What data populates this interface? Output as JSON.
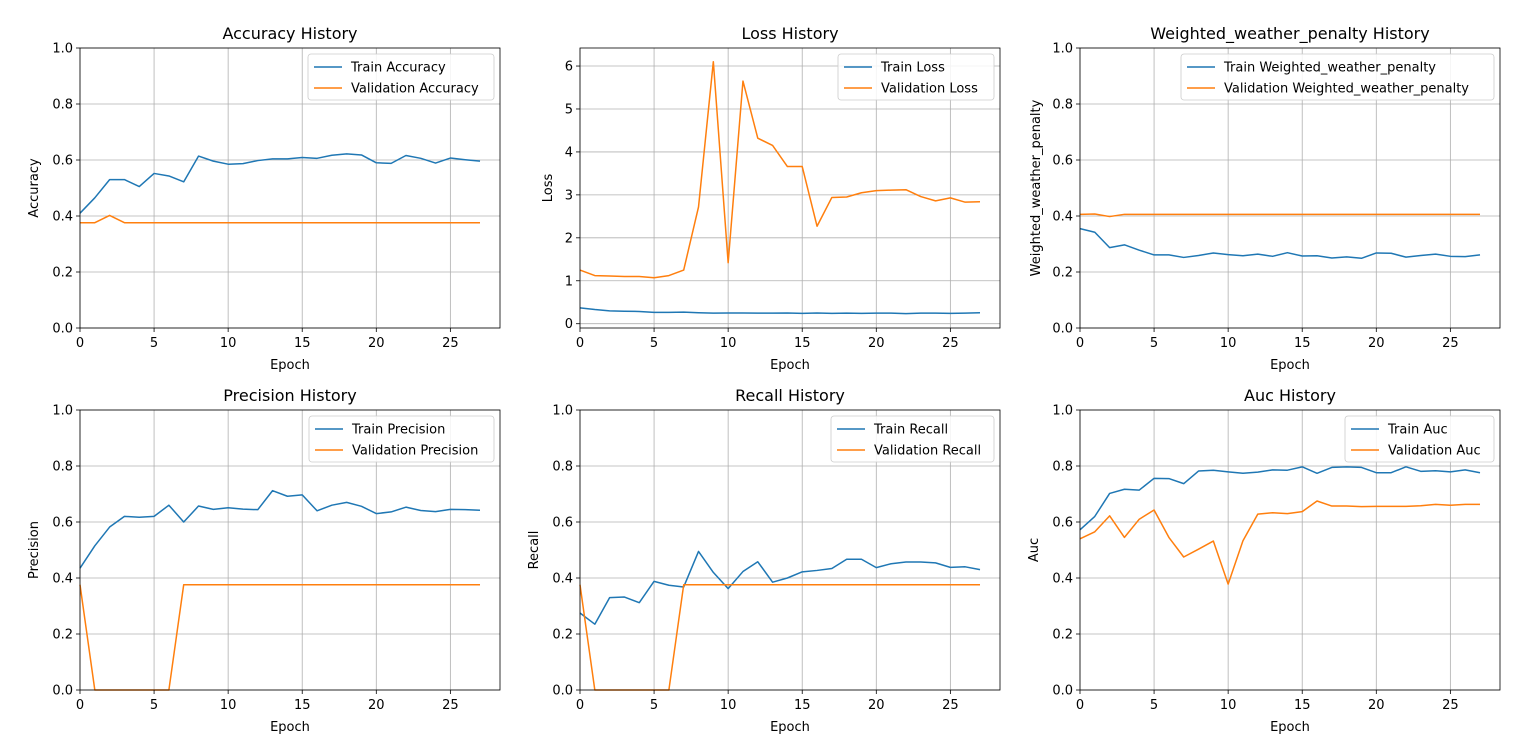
{
  "chart_data": [
    {
      "type": "line",
      "title": "Accuracy History",
      "xlabel": "Epoch",
      "ylabel": "Accuracy",
      "xlim": [
        0,
        28.35
      ],
      "ylim": [
        0,
        1.0
      ],
      "xticks": [
        0,
        5,
        10,
        15,
        20,
        25
      ],
      "yticks": [
        0.0,
        0.2,
        0.4,
        0.6,
        0.8,
        1.0
      ],
      "ytick_labels": [
        "0.0",
        "0.2",
        "0.4",
        "0.6",
        "0.8",
        "1.0"
      ],
      "grid": true,
      "legend_position": "top-right",
      "series": [
        {
          "name": "Train Accuracy",
          "color": "#1f77b4",
          "values": [
            0.41,
            0.465,
            0.53,
            0.53,
            0.505,
            0.552,
            0.543,
            0.522,
            0.614,
            0.596,
            0.585,
            0.587,
            0.598,
            0.604,
            0.604,
            0.609,
            0.606,
            0.617,
            0.622,
            0.618,
            0.59,
            0.588,
            0.616,
            0.606,
            0.589,
            0.607,
            0.601,
            0.596
          ]
        },
        {
          "name": "Validation Accuracy",
          "color": "#ff7f0e",
          "values": [
            0.376,
            0.376,
            0.402,
            0.376,
            0.376,
            0.376,
            0.376,
            0.376,
            0.376,
            0.376,
            0.376,
            0.376,
            0.376,
            0.376,
            0.376,
            0.376,
            0.376,
            0.376,
            0.376,
            0.376,
            0.376,
            0.376,
            0.376,
            0.376,
            0.376,
            0.376,
            0.376,
            0.376
          ]
        }
      ]
    },
    {
      "type": "line",
      "title": "Loss History",
      "xlabel": "Epoch",
      "ylabel": "Loss",
      "xlim": [
        0,
        28.35
      ],
      "ylim": [
        -0.1,
        6.42
      ],
      "xticks": [
        0,
        5,
        10,
        15,
        20,
        25
      ],
      "yticks": [
        0,
        1,
        2,
        3,
        4,
        5,
        6
      ],
      "ytick_labels": [
        "0",
        "1",
        "2",
        "3",
        "4",
        "5",
        "6"
      ],
      "grid": true,
      "legend_position": "top-right",
      "series": [
        {
          "name": "Train Loss",
          "color": "#1f77b4",
          "values": [
            0.37,
            0.33,
            0.3,
            0.29,
            0.285,
            0.265,
            0.265,
            0.27,
            0.255,
            0.245,
            0.25,
            0.25,
            0.245,
            0.245,
            0.25,
            0.24,
            0.25,
            0.24,
            0.245,
            0.24,
            0.245,
            0.245,
            0.235,
            0.245,
            0.245,
            0.24,
            0.245,
            0.255
          ]
        },
        {
          "name": "Validation Loss",
          "color": "#ff7f0e",
          "values": [
            1.25,
            1.12,
            1.11,
            1.1,
            1.1,
            1.07,
            1.12,
            1.25,
            2.72,
            6.1,
            1.42,
            5.65,
            4.32,
            4.15,
            3.66,
            3.66,
            2.27,
            2.94,
            2.95,
            3.05,
            3.1,
            3.11,
            3.12,
            2.96,
            2.86,
            2.93,
            2.83,
            2.84
          ]
        }
      ]
    },
    {
      "type": "line",
      "title": "Weighted_weather_penalty History",
      "xlabel": "Epoch",
      "ylabel": "Weighted_weather_penalty",
      "xlim": [
        0,
        28.35
      ],
      "ylim": [
        0,
        1.0
      ],
      "xticks": [
        0,
        5,
        10,
        15,
        20,
        25
      ],
      "yticks": [
        0.0,
        0.2,
        0.4,
        0.6,
        0.8,
        1.0
      ],
      "ytick_labels": [
        "0.0",
        "0.2",
        "0.4",
        "0.6",
        "0.8",
        "1.0"
      ],
      "grid": true,
      "legend_position": "top-right",
      "series": [
        {
          "name": "Train Weighted_weather_penalty",
          "color": "#1f77b4",
          "values": [
            0.355,
            0.342,
            0.287,
            0.297,
            0.278,
            0.261,
            0.261,
            0.252,
            0.259,
            0.268,
            0.262,
            0.258,
            0.264,
            0.256,
            0.269,
            0.257,
            0.258,
            0.25,
            0.254,
            0.249,
            0.268,
            0.267,
            0.253,
            0.259,
            0.264,
            0.256,
            0.255,
            0.261
          ]
        },
        {
          "name": "Validation Weighted_weather_penalty",
          "color": "#ff7f0e",
          "values": [
            0.406,
            0.407,
            0.398,
            0.406,
            0.406,
            0.406,
            0.406,
            0.406,
            0.406,
            0.406,
            0.406,
            0.406,
            0.406,
            0.406,
            0.406,
            0.406,
            0.406,
            0.406,
            0.406,
            0.406,
            0.406,
            0.406,
            0.406,
            0.406,
            0.406,
            0.406,
            0.406,
            0.406
          ]
        }
      ]
    },
    {
      "type": "line",
      "title": "Precision History",
      "xlabel": "Epoch",
      "ylabel": "Precision",
      "xlim": [
        0,
        28.35
      ],
      "ylim": [
        0,
        1.0
      ],
      "xticks": [
        0,
        5,
        10,
        15,
        20,
        25
      ],
      "yticks": [
        0.0,
        0.2,
        0.4,
        0.6,
        0.8,
        1.0
      ],
      "ytick_labels": [
        "0.0",
        "0.2",
        "0.4",
        "0.6",
        "0.8",
        "1.0"
      ],
      "grid": true,
      "legend_position": "top-right",
      "series": [
        {
          "name": "Train Precision",
          "color": "#1f77b4",
          "values": [
            0.435,
            0.515,
            0.582,
            0.62,
            0.617,
            0.62,
            0.66,
            0.6,
            0.657,
            0.645,
            0.651,
            0.646,
            0.644,
            0.712,
            0.692,
            0.697,
            0.64,
            0.66,
            0.67,
            0.656,
            0.63,
            0.636,
            0.653,
            0.641,
            0.637,
            0.645,
            0.644,
            0.642
          ]
        },
        {
          "name": "Validation Precision",
          "color": "#ff7f0e",
          "values": [
            0.376,
            0.0,
            0.0,
            0.0,
            0.0,
            0.0,
            0.0,
            0.376,
            0.376,
            0.376,
            0.376,
            0.376,
            0.376,
            0.376,
            0.376,
            0.376,
            0.376,
            0.376,
            0.376,
            0.376,
            0.376,
            0.376,
            0.376,
            0.376,
            0.376,
            0.376,
            0.376,
            0.376
          ]
        }
      ]
    },
    {
      "type": "line",
      "title": "Recall History",
      "xlabel": "Epoch",
      "ylabel": "Recall",
      "xlim": [
        0,
        28.35
      ],
      "ylim": [
        0,
        1.0
      ],
      "xticks": [
        0,
        5,
        10,
        15,
        20,
        25
      ],
      "yticks": [
        0.0,
        0.2,
        0.4,
        0.6,
        0.8,
        1.0
      ],
      "ytick_labels": [
        "0.0",
        "0.2",
        "0.4",
        "0.6",
        "0.8",
        "1.0"
      ],
      "grid": true,
      "legend_position": "top-right",
      "series": [
        {
          "name": "Train Recall",
          "color": "#1f77b4",
          "values": [
            0.275,
            0.235,
            0.33,
            0.332,
            0.312,
            0.388,
            0.374,
            0.368,
            0.495,
            0.42,
            0.362,
            0.423,
            0.458,
            0.385,
            0.4,
            0.422,
            0.427,
            0.434,
            0.467,
            0.467,
            0.437,
            0.451,
            0.457,
            0.457,
            0.454,
            0.438,
            0.44,
            0.43
          ]
        },
        {
          "name": "Validation Recall",
          "color": "#ff7f0e",
          "values": [
            0.376,
            0.0,
            0.0,
            0.0,
            0.0,
            0.0,
            0.0,
            0.376,
            0.376,
            0.376,
            0.376,
            0.376,
            0.376,
            0.376,
            0.376,
            0.376,
            0.376,
            0.376,
            0.376,
            0.376,
            0.376,
            0.376,
            0.376,
            0.376,
            0.376,
            0.376,
            0.376,
            0.376
          ]
        }
      ]
    },
    {
      "type": "line",
      "title": "Auc History",
      "xlabel": "Epoch",
      "ylabel": "Auc",
      "xlim": [
        0,
        28.35
      ],
      "ylim": [
        0,
        1.0
      ],
      "xticks": [
        0,
        5,
        10,
        15,
        20,
        25
      ],
      "yticks": [
        0.0,
        0.2,
        0.4,
        0.6,
        0.8,
        1.0
      ],
      "ytick_labels": [
        "0.0",
        "0.2",
        "0.4",
        "0.6",
        "0.8",
        "1.0"
      ],
      "grid": true,
      "legend_position": "top-right",
      "series": [
        {
          "name": "Train Auc",
          "color": "#1f77b4",
          "values": [
            0.572,
            0.62,
            0.702,
            0.717,
            0.714,
            0.756,
            0.755,
            0.737,
            0.782,
            0.785,
            0.779,
            0.774,
            0.778,
            0.786,
            0.785,
            0.797,
            0.774,
            0.795,
            0.797,
            0.795,
            0.776,
            0.776,
            0.797,
            0.781,
            0.783,
            0.779,
            0.786,
            0.776
          ]
        },
        {
          "name": "Validation Auc",
          "color": "#ff7f0e",
          "values": [
            0.54,
            0.565,
            0.622,
            0.545,
            0.61,
            0.643,
            0.545,
            0.475,
            0.503,
            0.532,
            0.378,
            0.533,
            0.628,
            0.633,
            0.63,
            0.637,
            0.675,
            0.657,
            0.657,
            0.655,
            0.656,
            0.656,
            0.656,
            0.658,
            0.663,
            0.66,
            0.663,
            0.663
          ]
        }
      ]
    }
  ]
}
